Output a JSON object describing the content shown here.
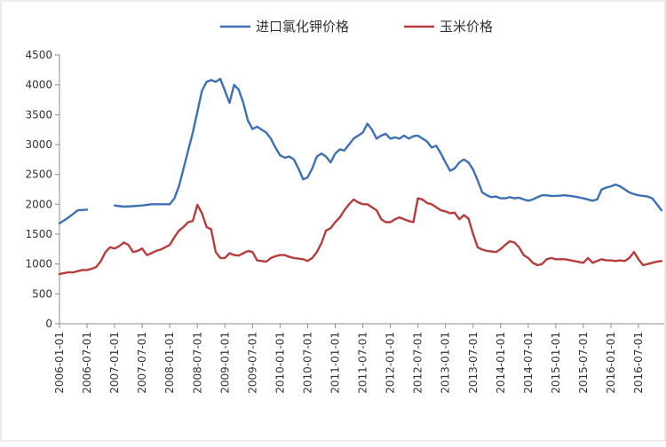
{
  "chart_data": {
    "type": "line",
    "title": "",
    "xlabel": "",
    "ylabel": "",
    "ylim": [
      0,
      4500
    ],
    "yticks": [
      0,
      500,
      1000,
      1500,
      2000,
      2500,
      3000,
      3500,
      4000,
      4500
    ],
    "grid": false,
    "legend_position": "top",
    "x_tick_labels": [
      "2006-01-01",
      "2006-07-01",
      "2007-01-01",
      "2007-07-01",
      "2008-01-01",
      "2008-07-01",
      "2009-01-01",
      "2009-07-01",
      "2010-01-01",
      "2010-07-01",
      "2011-01-01",
      "2011-07-01",
      "2012-01-01",
      "2012-07-01",
      "2013-01-01",
      "2013-07-01",
      "2014-01-01",
      "2014-07-01",
      "2015-01-01",
      "2015-07-01",
      "2016-01-01",
      "2016-07-01"
    ],
    "series": [
      {
        "name": "进口氯化钾价格",
        "color": "#3d6fb4",
        "points": [
          [
            "2006-01-01",
            1680
          ],
          [
            "2006-03-01",
            1780
          ],
          [
            "2006-05-01",
            1900
          ],
          [
            "2006-07-01",
            1910
          ],
          null,
          [
            "2007-01-01",
            1980
          ],
          [
            "2007-03-01",
            1960
          ],
          [
            "2007-05-01",
            1970
          ],
          [
            "2007-07-01",
            1980
          ],
          [
            "2007-09-01",
            2000
          ],
          [
            "2007-11-01",
            2000
          ],
          [
            "2008-01-01",
            2000
          ],
          [
            "2008-02-01",
            2100
          ],
          [
            "2008-03-01",
            2300
          ],
          [
            "2008-04-01",
            2600
          ],
          [
            "2008-05-01",
            2900
          ],
          [
            "2008-06-01",
            3200
          ],
          [
            "2008-07-01",
            3550
          ],
          [
            "2008-08-01",
            3900
          ],
          [
            "2008-09-01",
            4050
          ],
          [
            "2008-10-01",
            4080
          ],
          [
            "2008-11-01",
            4050
          ],
          [
            "2008-12-01",
            4100
          ],
          [
            "2009-01-01",
            3900
          ],
          [
            "2009-02-01",
            3700
          ],
          [
            "2009-03-01",
            4000
          ],
          [
            "2009-04-01",
            3920
          ],
          [
            "2009-05-01",
            3700
          ],
          [
            "2009-06-01",
            3400
          ],
          [
            "2009-07-01",
            3260
          ],
          [
            "2009-08-01",
            3300
          ],
          [
            "2009-09-01",
            3250
          ],
          [
            "2009-10-01",
            3200
          ],
          [
            "2009-11-01",
            3100
          ],
          [
            "2009-12-01",
            2950
          ],
          [
            "2010-01-01",
            2820
          ],
          [
            "2010-02-01",
            2780
          ],
          [
            "2010-03-01",
            2800
          ],
          [
            "2010-04-01",
            2750
          ],
          [
            "2010-05-01",
            2600
          ],
          [
            "2010-06-01",
            2420
          ],
          [
            "2010-07-01",
            2450
          ],
          [
            "2010-08-01",
            2600
          ],
          [
            "2010-09-01",
            2800
          ],
          [
            "2010-10-01",
            2850
          ],
          [
            "2010-11-01",
            2800
          ],
          [
            "2010-12-01",
            2700
          ],
          [
            "2011-01-01",
            2850
          ],
          [
            "2011-02-01",
            2920
          ],
          [
            "2011-03-01",
            2900
          ],
          [
            "2011-04-01",
            3000
          ],
          [
            "2011-05-01",
            3100
          ],
          [
            "2011-06-01",
            3150
          ],
          [
            "2011-07-01",
            3200
          ],
          [
            "2011-08-01",
            3350
          ],
          [
            "2011-09-01",
            3250
          ],
          [
            "2011-10-01",
            3100
          ],
          [
            "2011-11-01",
            3150
          ],
          [
            "2011-12-01",
            3180
          ],
          [
            "2012-01-01",
            3100
          ],
          [
            "2012-02-01",
            3120
          ],
          [
            "2012-03-01",
            3100
          ],
          [
            "2012-04-01",
            3150
          ],
          [
            "2012-05-01",
            3100
          ],
          [
            "2012-06-01",
            3140
          ],
          [
            "2012-07-01",
            3150
          ],
          [
            "2012-08-01",
            3100
          ],
          [
            "2012-09-01",
            3050
          ],
          [
            "2012-10-01",
            2950
          ],
          [
            "2012-11-01",
            2980
          ],
          [
            "2012-12-01",
            2850
          ],
          [
            "2013-01-01",
            2700
          ],
          [
            "2013-02-01",
            2560
          ],
          [
            "2013-03-01",
            2600
          ],
          [
            "2013-04-01",
            2700
          ],
          [
            "2013-05-01",
            2750
          ],
          [
            "2013-06-01",
            2700
          ],
          [
            "2013-07-01",
            2580
          ],
          [
            "2013-08-01",
            2400
          ],
          [
            "2013-09-01",
            2200
          ],
          [
            "2013-10-01",
            2150
          ],
          [
            "2013-11-01",
            2120
          ],
          [
            "2013-12-01",
            2130
          ],
          [
            "2014-01-01",
            2100
          ],
          [
            "2014-02-01",
            2100
          ],
          [
            "2014-03-01",
            2120
          ],
          [
            "2014-04-01",
            2100
          ],
          [
            "2014-05-01",
            2110
          ],
          [
            "2014-06-01",
            2080
          ],
          [
            "2014-07-01",
            2060
          ],
          [
            "2014-08-01",
            2080
          ],
          [
            "2014-09-01",
            2120
          ],
          [
            "2014-10-01",
            2150
          ],
          [
            "2014-11-01",
            2150
          ],
          [
            "2014-12-01",
            2140
          ],
          [
            "2015-01-01",
            2140
          ],
          [
            "2015-03-01",
            2150
          ],
          [
            "2015-05-01",
            2130
          ],
          [
            "2015-07-01",
            2100
          ],
          [
            "2015-08-01",
            2080
          ],
          [
            "2015-09-01",
            2060
          ],
          [
            "2015-10-01",
            2080
          ],
          [
            "2015-11-01",
            2250
          ],
          [
            "2015-12-01",
            2280
          ],
          [
            "2016-01-01",
            2300
          ],
          [
            "2016-02-01",
            2330
          ],
          [
            "2016-03-01",
            2300
          ],
          [
            "2016-04-01",
            2250
          ],
          [
            "2016-05-01",
            2200
          ],
          [
            "2016-06-01",
            2170
          ],
          [
            "2016-07-01",
            2150
          ],
          [
            "2016-08-01",
            2140
          ],
          [
            "2016-09-01",
            2130
          ],
          [
            "2016-10-01",
            2100
          ],
          [
            "2016-11-01",
            2000
          ],
          [
            "2016-12-01",
            1900
          ]
        ]
      },
      {
        "name": "玉米价格",
        "color": "#b83b3d",
        "points": [
          [
            "2006-01-01",
            830
          ],
          [
            "2006-02-01",
            850
          ],
          [
            "2006-03-01",
            860
          ],
          [
            "2006-04-01",
            860
          ],
          [
            "2006-05-01",
            880
          ],
          [
            "2006-06-01",
            900
          ],
          [
            "2006-07-01",
            900
          ],
          [
            "2006-08-01",
            920
          ],
          [
            "2006-09-01",
            950
          ],
          [
            "2006-10-01",
            1050
          ],
          [
            "2006-11-01",
            1200
          ],
          [
            "2006-12-01",
            1280
          ],
          [
            "2007-01-01",
            1260
          ],
          [
            "2007-02-01",
            1300
          ],
          [
            "2007-03-01",
            1360
          ],
          [
            "2007-04-01",
            1320
          ],
          [
            "2007-05-01",
            1200
          ],
          [
            "2007-06-01",
            1220
          ],
          [
            "2007-07-01",
            1260
          ],
          [
            "2007-08-01",
            1150
          ],
          [
            "2007-09-01",
            1180
          ],
          [
            "2007-10-01",
            1220
          ],
          [
            "2007-11-01",
            1240
          ],
          [
            "2007-12-01",
            1280
          ],
          [
            "2008-01-01",
            1320
          ],
          [
            "2008-02-01",
            1450
          ],
          [
            "2008-03-01",
            1560
          ],
          [
            "2008-04-01",
            1620
          ],
          [
            "2008-05-01",
            1700
          ],
          [
            "2008-06-01",
            1720
          ],
          [
            "2008-07-01",
            1990
          ],
          [
            "2008-08-01",
            1850
          ],
          [
            "2008-09-01",
            1620
          ],
          [
            "2008-10-01",
            1580
          ],
          [
            "2008-11-01",
            1200
          ],
          [
            "2008-12-01",
            1100
          ],
          [
            "2009-01-01",
            1100
          ],
          [
            "2009-02-01",
            1180
          ],
          [
            "2009-03-01",
            1150
          ],
          [
            "2009-04-01",
            1140
          ],
          [
            "2009-05-01",
            1180
          ],
          [
            "2009-06-01",
            1220
          ],
          [
            "2009-07-01",
            1200
          ],
          [
            "2009-08-01",
            1060
          ],
          [
            "2009-09-01",
            1050
          ],
          [
            "2009-10-01",
            1040
          ],
          [
            "2009-11-01",
            1100
          ],
          [
            "2009-12-01",
            1130
          ],
          [
            "2010-01-01",
            1150
          ],
          [
            "2010-02-01",
            1150
          ],
          [
            "2010-03-01",
            1120
          ],
          [
            "2010-04-01",
            1100
          ],
          [
            "2010-05-01",
            1090
          ],
          [
            "2010-06-01",
            1080
          ],
          [
            "2010-07-01",
            1050
          ],
          [
            "2010-08-01",
            1100
          ],
          [
            "2010-09-01",
            1200
          ],
          [
            "2010-10-01",
            1350
          ],
          [
            "2010-11-01",
            1560
          ],
          [
            "2010-12-01",
            1600
          ],
          [
            "2011-01-01",
            1700
          ],
          [
            "2011-02-01",
            1780
          ],
          [
            "2011-03-01",
            1900
          ],
          [
            "2011-04-01",
            2000
          ],
          [
            "2011-05-01",
            2080
          ],
          [
            "2011-06-01",
            2030
          ],
          [
            "2011-07-01",
            2000
          ],
          [
            "2011-08-01",
            2000
          ],
          [
            "2011-09-01",
            1950
          ],
          [
            "2011-10-01",
            1900
          ],
          [
            "2011-11-01",
            1750
          ],
          [
            "2011-12-01",
            1700
          ],
          [
            "2012-01-01",
            1700
          ],
          [
            "2012-02-01",
            1750
          ],
          [
            "2012-03-01",
            1780
          ],
          [
            "2012-04-01",
            1750
          ],
          [
            "2012-05-01",
            1720
          ],
          [
            "2012-06-01",
            1700
          ],
          [
            "2012-07-01",
            2100
          ],
          [
            "2012-08-01",
            2080
          ],
          [
            "2012-09-01",
            2020
          ],
          [
            "2012-10-01",
            2000
          ],
          [
            "2012-11-01",
            1950
          ],
          [
            "2012-12-01",
            1900
          ],
          [
            "2013-01-01",
            1880
          ],
          [
            "2013-02-01",
            1850
          ],
          [
            "2013-03-01",
            1860
          ],
          [
            "2013-04-01",
            1750
          ],
          [
            "2013-05-01",
            1820
          ],
          [
            "2013-06-01",
            1760
          ],
          [
            "2013-07-01",
            1500
          ],
          [
            "2013-08-01",
            1280
          ],
          [
            "2013-09-01",
            1240
          ],
          [
            "2013-10-01",
            1220
          ],
          [
            "2013-11-01",
            1210
          ],
          [
            "2013-12-01",
            1200
          ],
          [
            "2014-01-01",
            1250
          ],
          [
            "2014-02-01",
            1320
          ],
          [
            "2014-03-01",
            1380
          ],
          [
            "2014-04-01",
            1360
          ],
          [
            "2014-05-01",
            1280
          ],
          [
            "2014-06-01",
            1150
          ],
          [
            "2014-07-01",
            1100
          ],
          [
            "2014-08-01",
            1020
          ],
          [
            "2014-09-01",
            980
          ],
          [
            "2014-10-01",
            1000
          ],
          [
            "2014-11-01",
            1080
          ],
          [
            "2014-12-01",
            1100
          ],
          [
            "2015-01-01",
            1080
          ],
          [
            "2015-03-01",
            1080
          ],
          [
            "2015-05-01",
            1050
          ],
          [
            "2015-07-01",
            1020
          ],
          [
            "2015-08-01",
            1100
          ],
          [
            "2015-09-01",
            1020
          ],
          [
            "2015-10-01",
            1050
          ],
          [
            "2015-11-01",
            1080
          ],
          [
            "2015-12-01",
            1060
          ],
          [
            "2016-01-01",
            1060
          ],
          [
            "2016-02-01",
            1050
          ],
          [
            "2016-03-01",
            1060
          ],
          [
            "2016-04-01",
            1050
          ],
          [
            "2016-05-01",
            1100
          ],
          [
            "2016-06-01",
            1200
          ],
          [
            "2016-07-01",
            1080
          ],
          [
            "2016-08-01",
            980
          ],
          [
            "2016-09-01",
            1000
          ],
          [
            "2016-10-01",
            1020
          ],
          [
            "2016-11-01",
            1040
          ],
          [
            "2016-12-01",
            1050
          ]
        ]
      }
    ]
  }
}
